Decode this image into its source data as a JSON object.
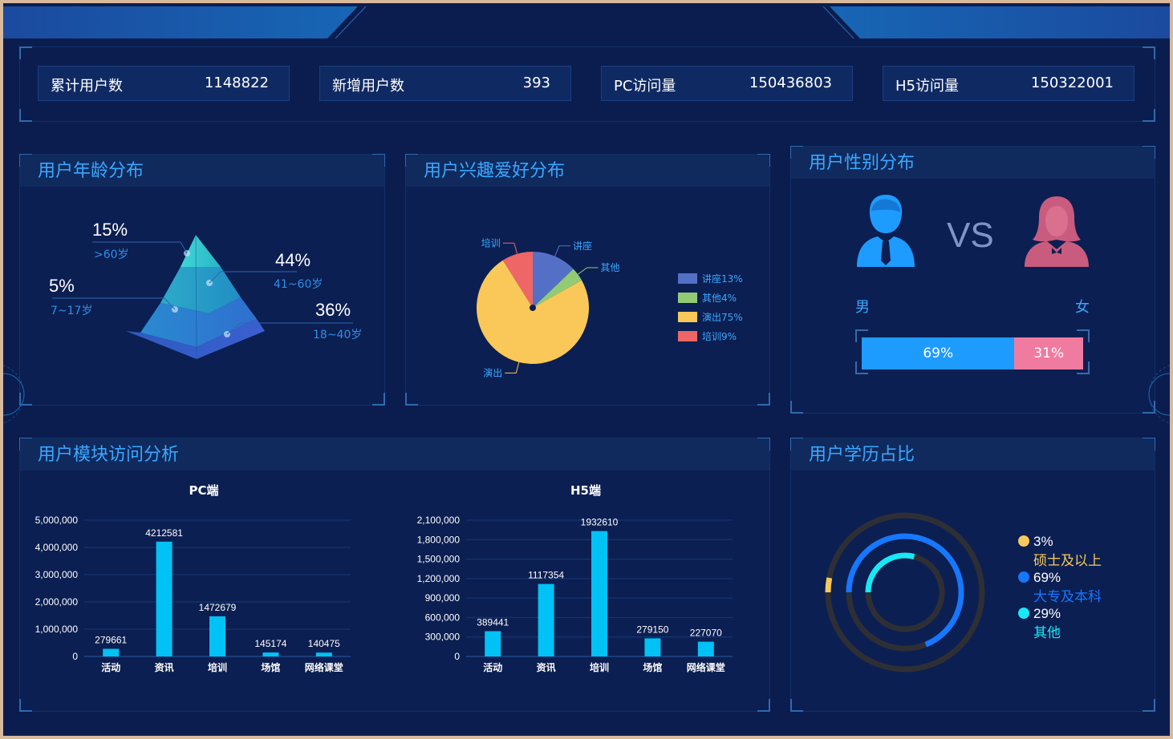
{
  "stats": [
    {
      "label": "累计用户数",
      "value": "1148822"
    },
    {
      "label": "新增用户数",
      "value": "393"
    },
    {
      "label": "PC访问量",
      "value": "150436803"
    },
    {
      "label": "H5访问量",
      "value": "150322001"
    }
  ],
  "age": {
    "title": "用户年龄分布",
    "items": [
      {
        "pct": "15%",
        "range": ">60岁"
      },
      {
        "pct": "44%",
        "range": "41~60岁"
      },
      {
        "pct": "5%",
        "range": "7~17岁"
      },
      {
        "pct": "36%",
        "range": "18~40岁"
      }
    ]
  },
  "interest": {
    "title": "用户兴趣爱好分布",
    "chart_data": {
      "type": "pie",
      "slices": [
        {
          "name": "讲座",
          "value": 13,
          "color": "#5470c6",
          "legend": "讲座13%"
        },
        {
          "name": "其他",
          "value": 4,
          "color": "#91cc75",
          "legend": "其他4%"
        },
        {
          "name": "演出",
          "value": 75,
          "color": "#fac858",
          "legend": "演出75%"
        },
        {
          "name": "培训",
          "value": 9,
          "color": "#ee6666",
          "legend": "培训9%"
        }
      ]
    }
  },
  "gender": {
    "title": "用户性别分布",
    "vs": "VS",
    "male_label": "男",
    "female_label": "女",
    "male_pct": "69%",
    "female_pct": "31%",
    "male_value": 69,
    "female_value": 31,
    "male_color": "#1e9bff",
    "female_color": "#f07ba0"
  },
  "module": {
    "title": "用户模块访问分析",
    "chart_data": [
      {
        "type": "bar",
        "title": "PC端",
        "categories": [
          "活动",
          "资讯",
          "培训",
          "场馆",
          "网络课堂"
        ],
        "values": [
          279661,
          4212581,
          1472679,
          145174,
          140475
        ],
        "yticks": [
          "0",
          "1,000,000",
          "2,000,000",
          "3,000,000",
          "4,000,000",
          "5,000,000"
        ],
        "ylim": [
          0,
          5000000
        ]
      },
      {
        "type": "bar",
        "title": "H5端",
        "categories": [
          "活动",
          "资讯",
          "培训",
          "场馆",
          "网络课堂"
        ],
        "values": [
          389441,
          1117354,
          1932610,
          279150,
          227070
        ],
        "yticks": [
          "0",
          "300,000",
          "600,000",
          "900,000",
          "1,200,000",
          "1,500,000",
          "1,800,000",
          "2,100,000"
        ],
        "ylim": [
          0,
          2100000
        ]
      }
    ]
  },
  "education": {
    "title": "用户学历占比",
    "items": [
      {
        "pct": "3%",
        "name": "硕士及以上",
        "value": 3,
        "color": "#f7c95c"
      },
      {
        "pct": "69%",
        "name": "大专及本科",
        "value": 69,
        "color": "#1677ff"
      },
      {
        "pct": "29%",
        "name": "其他",
        "value": 29,
        "color": "#16e9f5"
      }
    ]
  }
}
